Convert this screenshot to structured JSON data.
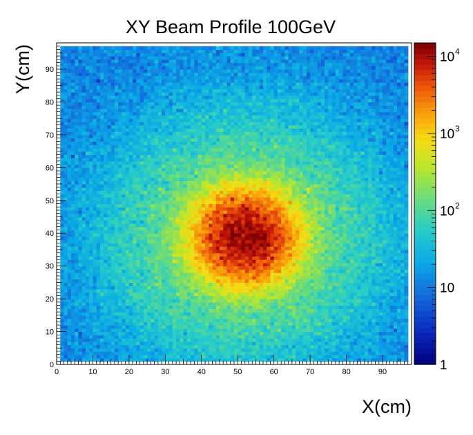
{
  "chart_data": {
    "type": "heatmap",
    "title": "XY Beam Profile 100GeV",
    "xlabel": "X(cm)",
    "ylabel": "Y(cm)",
    "xlim": [
      0,
      98
    ],
    "ylim": [
      0,
      98
    ],
    "bins": {
      "nx": 98,
      "ny": 98,
      "width": 1
    },
    "x_ticks": [
      0,
      10,
      20,
      30,
      40,
      50,
      60,
      70,
      80,
      90
    ],
    "y_ticks": [
      0,
      10,
      20,
      30,
      40,
      50,
      60,
      70,
      80,
      90
    ],
    "color_scale": {
      "type": "log",
      "min": 1,
      "max": 15000,
      "palette": "rainbow",
      "labels": [
        {
          "value": 1,
          "base": "1",
          "exp": ""
        },
        {
          "value": 10,
          "base": "10",
          "exp": ""
        },
        {
          "value": 100,
          "base": "10",
          "exp": "2"
        },
        {
          "value": 1000,
          "base": "10",
          "exp": "3"
        },
        {
          "value": 10000,
          "base": "10",
          "exp": "4"
        }
      ]
    },
    "peak": {
      "x": 52,
      "y": 39,
      "count": 12000
    },
    "background_level": 12,
    "empty_border_bins": {
      "left": 1,
      "right": 1,
      "bottom": 1,
      "top": 1
    }
  }
}
